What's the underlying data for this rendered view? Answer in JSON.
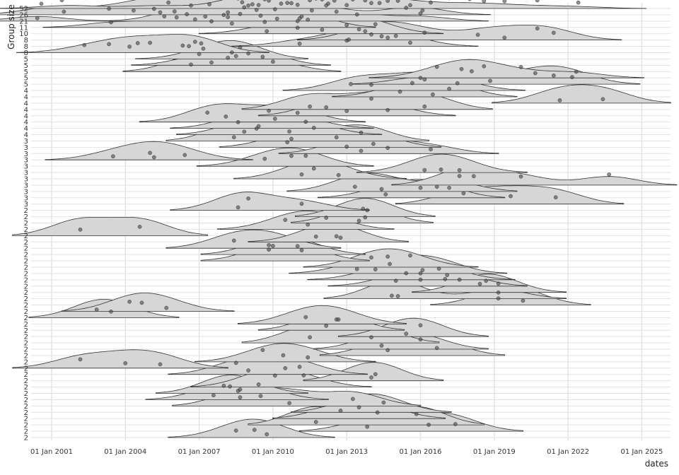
{
  "chart_data": {
    "type": "ridgeline",
    "xlabel": "dates",
    "ylabel": "Group size",
    "xlim": [
      "2000-03-01",
      "2026-03-01"
    ],
    "x_ticks": [
      {
        "date": "2001-01-01",
        "label": "01 Jan 2001"
      },
      {
        "date": "2004-01-01",
        "label": "01 Jan 2004"
      },
      {
        "date": "2007-01-01",
        "label": "01 Jan 2007"
      },
      {
        "date": "2010-01-01",
        "label": "01 Jan 2010"
      },
      {
        "date": "2013-01-01",
        "label": "01 Jan 2013"
      },
      {
        "date": "2016-01-01",
        "label": "01 Jan 2016"
      },
      {
        "date": "2019-01-01",
        "label": "01 Jan 2019"
      },
      {
        "date": "2022-01-01",
        "label": "01 Jan 2022"
      },
      {
        "date": "2025-01-01",
        "label": "01 Jan 2025"
      }
    ],
    "grid": true,
    "groups": [
      {
        "label": "52",
        "dates": [
          "2001-06",
          "2002-01",
          "2004-09",
          "2005-10",
          "2008-02",
          "2008-08",
          "2008-10",
          "2009-01",
          "2009-03",
          "2009-06",
          "2009-09",
          "2009-11",
          "2010-02",
          "2010-05",
          "2010-08",
          "2010-10",
          "2011-01",
          "2011-04",
          "2011-07",
          "2011-10",
          "2012-01",
          "2012-04",
          "2012-07",
          "2013-01",
          "2013-04",
          "2013-07",
          "2013-10",
          "2014-01",
          "2014-05",
          "2014-09",
          "2015-02",
          "2015-08",
          "2016-06",
          "2017-03",
          "2018-01",
          "2018-08",
          "2019-06",
          "2020-10",
          "2022-06"
        ]
      },
      {
        "label": "26",
        "dates": [
          "2000-08",
          "2001-07",
          "2003-05",
          "2004-05",
          "2005-03",
          "2005-06",
          "2006-01",
          "2006-09",
          "2007-06",
          "2008-03",
          "2008-11",
          "2009-05",
          "2010-02",
          "2011-08",
          "2012-03",
          "2015-06",
          "2016-02"
        ]
      },
      {
        "label": "21",
        "dates": [
          "2000-06",
          "2006-02",
          "2006-07",
          "2007-04",
          "2008-01",
          "2008-09",
          "2009-07",
          "2010-03",
          "2011-02",
          "2012-08",
          "2013-06",
          "2016-01"
        ]
      },
      {
        "label": "11",
        "dates": [
          "2003-06",
          "2005-08",
          "2006-11",
          "2007-07",
          "2008-03",
          "2008-05",
          "2009-09",
          "2011-01",
          "2011-03",
          "2011-06"
        ]
      },
      {
        "label": "10",
        "dates": [
          "2009-10",
          "2011-01",
          "2012-01",
          "2013-01",
          "2013-07",
          "2014-03"
        ]
      },
      {
        "label": "8",
        "dates": [
          "2013-10",
          "2014-06",
          "2015-01",
          "2016-03",
          "2018-05",
          "2019-06",
          "2020-10",
          "2021-06"
        ]
      },
      {
        "label": "8",
        "dates": [
          "2011-02",
          "2013-00",
          "2013-02",
          "2014-01",
          "2014-09",
          "2015-08"
        ]
      },
      {
        "label": "8",
        "dates": [
          "2002-05",
          "2003-05",
          "2004-03",
          "2004-07",
          "2005-00",
          "2006-05",
          "2006-08",
          "2006-11",
          "2007-02"
        ]
      },
      {
        "label": "5",
        "dates": [
          "2007-03",
          "2008-05",
          "2008-07",
          "2008-09"
        ]
      },
      {
        "label": "5",
        "dates": [
          "2007-01",
          "2008-03",
          "2009-01",
          "2009-08"
        ]
      },
      {
        "label": "5",
        "dates": [
          "2006-09",
          "2007-07",
          "2010-00"
        ]
      },
      {
        "label": "5",
        "dates": [
          "2016-09",
          "2017-09",
          "2018-02",
          "2018-08",
          "2020-02",
          "2022-05"
        ]
      },
      {
        "label": "5",
        "dates": [
          "2016-00",
          "2018-11",
          "2020-09",
          "2021-06",
          "2022-03"
        ]
      },
      {
        "label": "4",
        "dates": [
          "2013-03",
          "2014-01",
          "2015-09",
          "2016-03",
          "2017-07"
        ]
      },
      {
        "label": "4",
        "dates": [
          "2015-03",
          "2016-07",
          "2017-03"
        ]
      },
      {
        "label": "4",
        "dates": [
          "2021-09",
          "2023-06"
        ]
      },
      {
        "label": "4",
        "dates": [
          "2011-07",
          "2014-01",
          "2016-03"
        ]
      },
      {
        "label": "4",
        "dates": [
          "2012-03",
          "2013-01",
          "2014-09"
        ]
      },
      {
        "label": "4",
        "dates": [
          "2007-05",
          "2008-02",
          "2009-11",
          "2011-01"
        ]
      },
      {
        "label": "4",
        "dates": [
          "2008-08",
          "2009-06",
          "2010-02",
          "2011-05"
        ]
      },
      {
        "label": "4",
        "dates": [
          "2008-11",
          "2009-05",
          "2010-09",
          "2011-09"
        ]
      },
      {
        "label": "3",
        "dates": [
          "2008-06",
          "2010-10",
          "2013-08"
        ]
      },
      {
        "label": "3",
        "dates": [
          "2010-08",
          "2012-08",
          "2014-02"
        ]
      },
      {
        "label": "3",
        "dates": [
          "2013-00",
          "2013-08",
          "2014-09",
          "2016-06"
        ]
      },
      {
        "label": "3",
        "dates": [
          "2003-07",
          "2005-00",
          "2005-03",
          "2006-06"
        ]
      },
      {
        "label": "3",
        "dates": [
          "2009-09",
          "2010-10",
          "2011-05"
        ]
      },
      {
        "label": "3",
        "dates": [
          "2016-03",
          "2016-11",
          "2017-08"
        ]
      },
      {
        "label": "3",
        "dates": [
          "2011-03",
          "2011-09",
          "2012-09"
        ]
      },
      {
        "label": "3",
        "dates": [
          "2017-08",
          "2018-03",
          "2020-02",
          "2023-09"
        ]
      },
      {
        "label": "3",
        "dates": [
          "2013-05",
          "2014-06",
          "2017-03"
        ]
      },
      {
        "label": "3",
        "dates": [
          "2014-08",
          "2016-00",
          "2016-09"
        ]
      },
      {
        "label": "3",
        "dates": [
          "2017-10",
          "2019-09",
          "2021-07"
        ]
      },
      {
        "label": "2",
        "dates": [
          "2008-08",
          "2009-00",
          "2011-03"
        ]
      },
      {
        "label": "2",
        "dates": [
          "2013-09",
          "2013-11"
        ]
      },
      {
        "label": "2",
        "dates": [
          "2013-07",
          "2013-10"
        ]
      },
      {
        "label": "2",
        "dates": [
          "2010-07",
          "2011-06",
          "2012-03"
        ]
      },
      {
        "label": "2",
        "dates": [
          "2002-03",
          "2004-08"
        ]
      },
      {
        "label": "2",
        "dates": [
          "2011-10",
          "2012-08",
          "2012-10"
        ]
      },
      {
        "label": "2",
        "dates": [
          "2008-06",
          "2010-01"
        ]
      },
      {
        "label": "2",
        "dates": [
          "2009-11",
          "2011-01"
        ]
      },
      {
        "label": "2",
        "dates": [
          "2009-11",
          "2011-03"
        ]
      },
      {
        "label": "2",
        "dates": [
          "2014-00",
          "2014-09",
          "2015-08"
        ]
      },
      {
        "label": "2",
        "dates": [
          "2013-06",
          "2014-10",
          "2016-02",
          "2016-10"
        ]
      },
      {
        "label": "2",
        "dates": [
          "2014-03",
          "2015-06",
          "2016-01",
          "2017-02"
        ]
      },
      {
        "label": "2",
        "dates": [
          "2015-01",
          "2016-01",
          "2017-01",
          "2017-08"
        ]
      },
      {
        "label": "2",
        "dates": [
          "2019-03",
          "2018-06",
          "2018-09"
        ]
      },
      {
        "label": "2",
        "dates": [
          "2014-11",
          "2015-02",
          "2019-03"
        ]
      },
      {
        "label": "2",
        "dates": [
          "2020-03",
          "2019-03"
        ]
      },
      {
        "label": "2",
        "dates": [
          "2004-03",
          "2004-09",
          "2005-09"
        ]
      },
      {
        "label": "2",
        "dates": [
          "2002-11",
          "2003-06"
        ]
      },
      {
        "label": "2",
        "dates": [
          "2011-05",
          "2012-09"
        ]
      },
      {
        "label": "2",
        "dates": [
          "2012-03",
          "2012-08"
        ]
      },
      {
        "label": "2",
        "dates": [
          "2015-06",
          "2016-01"
        ]
      },
      {
        "label": "2",
        "dates": [
          "2011-07",
          "2014-01"
        ]
      },
      {
        "label": "2",
        "dates": [
          "2014-06",
          "2016-01"
        ]
      },
      {
        "label": "2",
        "dates": [
          "2016-09",
          "2014-09"
        ]
      },
      {
        "label": "2",
        "dates": [
          "2009-08",
          "2010-06",
          "2011-06"
        ]
      },
      {
        "label": "2",
        "dates": [
          "2002-03",
          "2004-00",
          "2005-06"
        ]
      },
      {
        "label": "2",
        "dates": [
          "2008-07",
          "2009-01",
          "2010-07",
          "2011-02"
        ]
      },
      {
        "label": "2",
        "dates": [
          "2014-01",
          "2014-03"
        ]
      },
      {
        "label": "2",
        "dates": [
          "2009-06",
          "2010-02",
          "2011-04"
        ]
      },
      {
        "label": "2",
        "dates": [
          "2008-01",
          "2008-04",
          "2008-09"
        ]
      },
      {
        "label": "2",
        "dates": [
          "2007-08",
          "2008-08",
          "2009-07"
        ]
      },
      {
        "label": "2",
        "dates": [
          "2008-09",
          "2010-09",
          "2013-04"
        ]
      },
      {
        "label": "2",
        "dates": [
          "2013-07",
          "2014-07"
        ]
      },
      {
        "label": "2",
        "dates": [
          "2012-10",
          "2014-04"
        ]
      },
      {
        "label": "2",
        "dates": [
          "2011-10",
          "2015-11"
        ]
      },
      {
        "label": "2",
        "dates": [
          "2013-11",
          "2016-05",
          "2017-06"
        ]
      },
      {
        "label": "2",
        "dates": [
          "2008-07",
          "2009-04",
          "2009-10"
        ]
      }
    ]
  }
}
